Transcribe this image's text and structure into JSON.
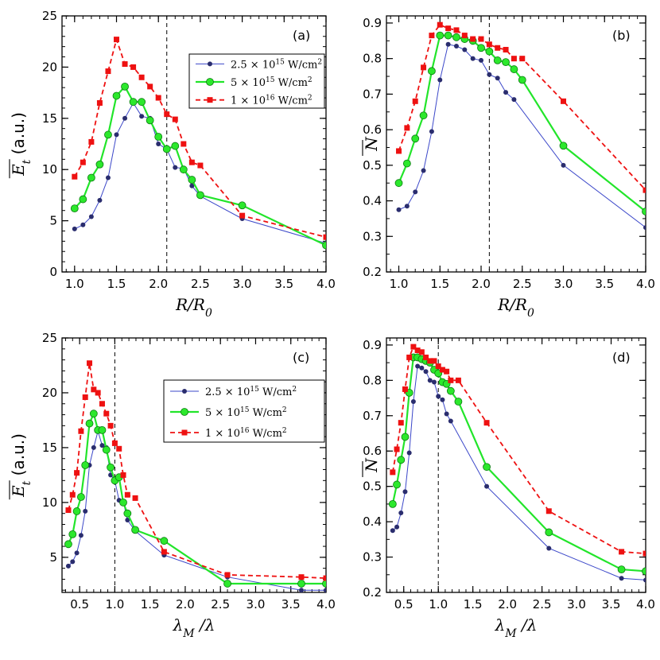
{
  "colors": {
    "blue": "#3b47c9",
    "blue_marker": "#2a2d6e",
    "green": "#22e52a",
    "green_marker": "#2ce82c",
    "red": "#ee1111"
  },
  "chart_data": [
    {
      "type": "line",
      "panel_label": "(a)",
      "xlabel": "R/R0",
      "xlabel_parts": {
        "main": "R/R",
        "sub": "0"
      },
      "ylabel": "Et (a.u.)",
      "ylabel_parts": {
        "main": "E",
        "sub": "t",
        "rest": " (a.u.)"
      },
      "xlim": [
        0.85,
        4.0
      ],
      "ylim": [
        0,
        25
      ],
      "xticks": [
        "1.0",
        "1.5",
        "2.0",
        "2.5",
        "3.0",
        "3.5",
        "4.0"
      ],
      "yticks": [
        "0",
        "5",
        "10",
        "15",
        "20",
        "25"
      ],
      "vline": 2.1,
      "legend": [
        "2.5 × 10^15 W/cm^2",
        "5 × 10^15 W/cm^2",
        "1 × 10^16 W/cm^2"
      ],
      "series": [
        {
          "name": "2.5 × 10^15 W/cm^2",
          "x": [
            1.0,
            1.1,
            1.2,
            1.3,
            1.4,
            1.5,
            1.6,
            1.7,
            1.8,
            1.9,
            2.0,
            2.1,
            2.2,
            2.3,
            2.4,
            2.5,
            3.0,
            4.0
          ],
          "y": [
            4.2,
            4.6,
            5.4,
            7.0,
            9.2,
            13.4,
            15.0,
            16.5,
            15.2,
            15.0,
            12.5,
            12.0,
            10.2,
            10.1,
            8.4,
            7.4,
            5.2,
            2.8
          ]
        },
        {
          "name": "5 × 10^15 W/cm^2",
          "x": [
            1.0,
            1.1,
            1.2,
            1.3,
            1.4,
            1.5,
            1.6,
            1.7,
            1.8,
            1.9,
            2.0,
            2.1,
            2.2,
            2.3,
            2.4,
            2.5,
            3.0,
            4.0
          ],
          "y": [
            6.2,
            7.1,
            9.2,
            10.5,
            13.4,
            17.2,
            18.1,
            16.6,
            16.6,
            14.8,
            13.2,
            12.0,
            12.3,
            10.0,
            9.0,
            7.5,
            6.5,
            2.6
          ]
        },
        {
          "name": "1 × 10^16 W/cm^2",
          "x": [
            1.0,
            1.1,
            1.2,
            1.3,
            1.4,
            1.5,
            1.6,
            1.7,
            1.8,
            1.9,
            2.0,
            2.1,
            2.2,
            2.3,
            2.4,
            2.5,
            3.0,
            4.0
          ],
          "y": [
            9.3,
            10.7,
            12.7,
            16.5,
            19.6,
            22.7,
            20.3,
            20.0,
            19.0,
            18.1,
            17.0,
            15.4,
            14.9,
            12.5,
            10.7,
            10.4,
            5.5,
            3.4
          ]
        }
      ]
    },
    {
      "type": "line",
      "panel_label": "(b)",
      "xlabel": "R/R0",
      "xlabel_parts": {
        "main": "R/R",
        "sub": "0"
      },
      "ylabel": "N",
      "ylabel_parts": {
        "main": "N",
        "sub": "",
        "rest": ""
      },
      "xlim": [
        0.85,
        4.0
      ],
      "ylim": [
        0.2,
        0.92
      ],
      "xticks": [
        "1.0",
        "1.5",
        "2.0",
        "2.5",
        "3.0",
        "3.5",
        "4.0"
      ],
      "yticks": [
        "0.2",
        "0.3",
        "0.4",
        "0.5",
        "0.6",
        "0.7",
        "0.8",
        "0.9"
      ],
      "vline": 2.1,
      "series": [
        {
          "name": "2.5 × 10^15 W/cm^2",
          "x": [
            1.0,
            1.1,
            1.2,
            1.3,
            1.4,
            1.5,
            1.6,
            1.7,
            1.8,
            1.9,
            2.0,
            2.1,
            2.2,
            2.3,
            2.4,
            3.0,
            4.0
          ],
          "y": [
            0.375,
            0.385,
            0.425,
            0.485,
            0.595,
            0.74,
            0.84,
            0.835,
            0.825,
            0.8,
            0.795,
            0.755,
            0.745,
            0.705,
            0.685,
            0.5,
            0.325
          ]
        },
        {
          "name": "5 × 10^15 W/cm^2",
          "x": [
            1.0,
            1.1,
            1.2,
            1.3,
            1.4,
            1.5,
            1.6,
            1.7,
            1.8,
            1.9,
            2.0,
            2.1,
            2.2,
            2.3,
            2.4,
            2.5,
            3.0,
            4.0
          ],
          "y": [
            0.45,
            0.505,
            0.575,
            0.64,
            0.765,
            0.865,
            0.865,
            0.86,
            0.855,
            0.85,
            0.83,
            0.82,
            0.795,
            0.79,
            0.77,
            0.74,
            0.555,
            0.37
          ]
        },
        {
          "name": "1 × 10^16 W/cm^2",
          "x": [
            1.0,
            1.1,
            1.2,
            1.3,
            1.4,
            1.5,
            1.6,
            1.7,
            1.8,
            1.9,
            2.0,
            2.1,
            2.2,
            2.3,
            2.4,
            2.5,
            3.0,
            4.0
          ],
          "y": [
            0.54,
            0.605,
            0.68,
            0.775,
            0.865,
            0.895,
            0.885,
            0.88,
            0.865,
            0.855,
            0.855,
            0.84,
            0.83,
            0.825,
            0.8,
            0.8,
            0.68,
            0.43
          ]
        }
      ]
    },
    {
      "type": "line",
      "panel_label": "(c)",
      "xlabel": "λM/λ",
      "xlabel_parts": {
        "main": "λ",
        "sub": "M",
        "rest": " /λ"
      },
      "ylabel": "Et (a.u.)",
      "ylabel_parts": {
        "main": "E",
        "sub": "t",
        "rest": " (a.u.)"
      },
      "xlim": [
        0.25,
        4.0
      ],
      "ylim": [
        1.8,
        25
      ],
      "xticks": [
        "0.5",
        "1.0",
        "1.5",
        "2.0",
        "2.5",
        "3.0",
        "3.5",
        "4.0"
      ],
      "yticks": [
        "5",
        "10",
        "15",
        "20",
        "25"
      ],
      "vline": 1.0,
      "legend": [
        "2.5 × 10^15 W/cm^2",
        "5 × 10^15 W/cm^2",
        "1 × 10^16 W/cm^2"
      ],
      "series": [
        {
          "name": "2.5 × 10^15 W/cm^2",
          "x": [
            0.34,
            0.4,
            0.46,
            0.52,
            0.58,
            0.64,
            0.7,
            0.76,
            0.82,
            0.88,
            0.94,
            1.0,
            1.06,
            1.12,
            1.18,
            1.29,
            1.7,
            2.6,
            3.65,
            4.0
          ],
          "y": [
            4.2,
            4.6,
            5.4,
            7.0,
            9.2,
            13.4,
            15.0,
            16.5,
            15.2,
            15.0,
            12.5,
            12.0,
            10.2,
            10.1,
            8.4,
            7.4,
            5.2,
            3.2,
            2.0,
            2.0
          ]
        },
        {
          "name": "5 × 10^15 W/cm^2",
          "x": [
            0.34,
            0.4,
            0.46,
            0.52,
            0.58,
            0.64,
            0.7,
            0.76,
            0.82,
            0.88,
            0.94,
            1.0,
            1.06,
            1.12,
            1.18,
            1.29,
            1.7,
            2.6,
            3.65,
            4.0
          ],
          "y": [
            6.2,
            7.1,
            9.2,
            10.5,
            13.4,
            17.2,
            18.1,
            16.6,
            16.6,
            14.8,
            13.2,
            12.0,
            12.3,
            10.0,
            9.0,
            7.5,
            6.5,
            2.6,
            2.6,
            2.6
          ]
        },
        {
          "name": "1 × 10^16 W/cm^2",
          "x": [
            0.34,
            0.4,
            0.46,
            0.52,
            0.58,
            0.64,
            0.7,
            0.76,
            0.82,
            0.88,
            0.94,
            1.0,
            1.06,
            1.12,
            1.18,
            1.29,
            1.7,
            2.6,
            3.65,
            4.0
          ],
          "y": [
            9.3,
            10.7,
            12.7,
            16.5,
            19.6,
            22.7,
            20.3,
            20.0,
            19.0,
            18.1,
            17.0,
            15.4,
            14.9,
            12.5,
            10.7,
            10.4,
            5.5,
            3.4,
            3.2,
            3.1
          ]
        }
      ]
    },
    {
      "type": "line",
      "panel_label": "(d)",
      "xlabel": "λM/λ",
      "xlabel_parts": {
        "main": "λ",
        "sub": "M",
        "rest": " /λ"
      },
      "ylabel": "N",
      "ylabel_parts": {
        "main": "N",
        "sub": "",
        "rest": ""
      },
      "xlim": [
        0.25,
        4.0
      ],
      "ylim": [
        0.2,
        0.92
      ],
      "xticks": [
        "0.5",
        "1.0",
        "1.5",
        "2.0",
        "2.5",
        "3.0",
        "3.5",
        "4.0"
      ],
      "yticks": [
        "0.2",
        "0.3",
        "0.4",
        "0.5",
        "0.6",
        "0.7",
        "0.8",
        "0.9"
      ],
      "vline": 1.0,
      "series": [
        {
          "name": "2.5 × 10^15 W/cm^2",
          "x": [
            0.34,
            0.4,
            0.46,
            0.52,
            0.58,
            0.64,
            0.7,
            0.76,
            0.82,
            0.88,
            0.94,
            1.0,
            1.06,
            1.12,
            1.18,
            1.7,
            2.6,
            3.65,
            4.0
          ],
          "y": [
            0.375,
            0.385,
            0.425,
            0.485,
            0.595,
            0.74,
            0.84,
            0.835,
            0.825,
            0.8,
            0.795,
            0.755,
            0.745,
            0.705,
            0.685,
            0.5,
            0.325,
            0.24,
            0.235
          ]
        },
        {
          "name": "5 × 10^15 W/cm^2",
          "x": [
            0.34,
            0.4,
            0.46,
            0.52,
            0.58,
            0.64,
            0.7,
            0.76,
            0.82,
            0.88,
            0.94,
            1.0,
            1.06,
            1.12,
            1.18,
            1.29,
            1.7,
            2.6,
            3.65,
            4.0
          ],
          "y": [
            0.45,
            0.505,
            0.575,
            0.64,
            0.765,
            0.865,
            0.865,
            0.86,
            0.855,
            0.85,
            0.83,
            0.82,
            0.795,
            0.79,
            0.77,
            0.74,
            0.555,
            0.37,
            0.265,
            0.26
          ]
        },
        {
          "name": "1 × 10^16 W/cm^2",
          "x": [
            0.34,
            0.4,
            0.46,
            0.52,
            0.58,
            0.64,
            0.7,
            0.76,
            0.82,
            0.88,
            0.94,
            1.0,
            1.06,
            1.12,
            1.18,
            1.29,
            1.7,
            2.6,
            3.65,
            4.0
          ],
          "y": [
            0.54,
            0.605,
            0.68,
            0.775,
            0.865,
            0.895,
            0.885,
            0.88,
            0.865,
            0.855,
            0.855,
            0.84,
            0.83,
            0.825,
            0.8,
            0.8,
            0.68,
            0.43,
            0.315,
            0.31
          ]
        }
      ]
    }
  ]
}
